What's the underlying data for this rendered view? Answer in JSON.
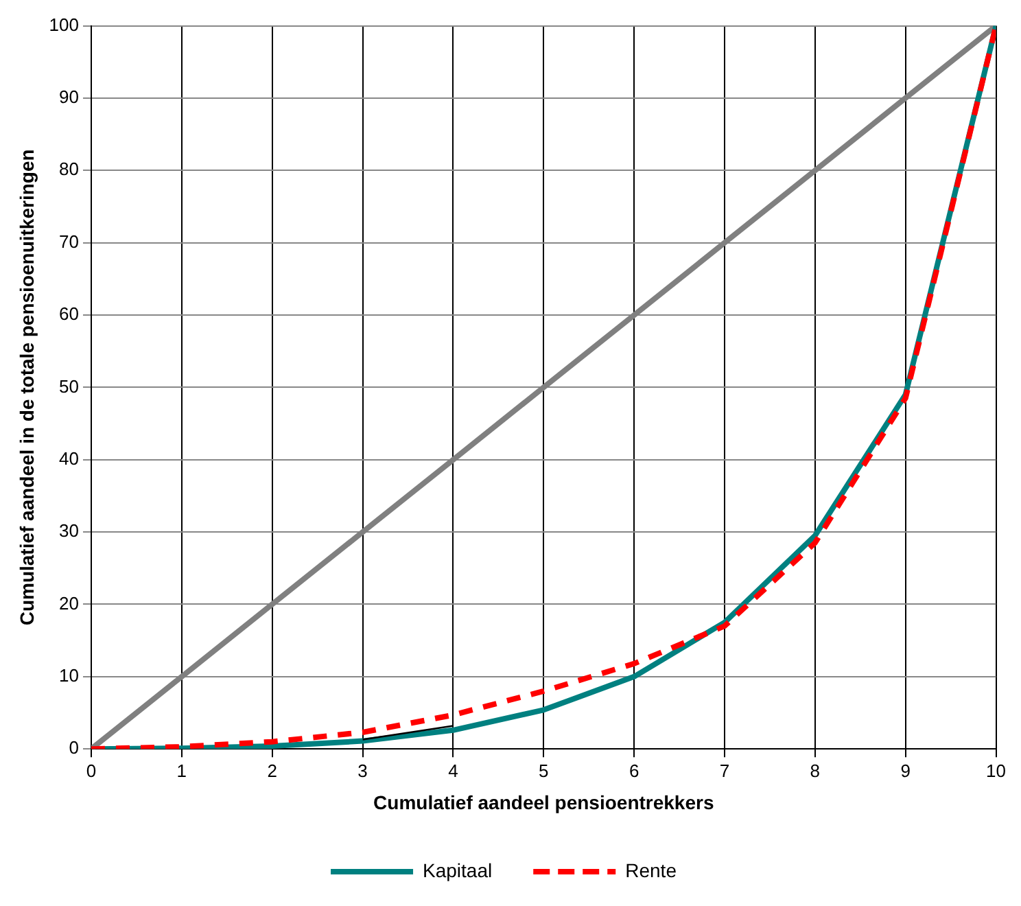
{
  "chart_data": {
    "type": "line",
    "xlabel": "Cumulatief aandeel pensioentrekkers",
    "ylabel": "Cumulatief aandeel in de totale pensioenuitkeringen",
    "x": [
      0,
      1,
      2,
      3,
      4,
      5,
      6,
      7,
      8,
      9,
      10
    ],
    "xlim": [
      0,
      10
    ],
    "xticks": [
      0,
      1,
      2,
      3,
      4,
      5,
      6,
      7,
      8,
      9,
      10
    ],
    "ylim": [
      0,
      100
    ],
    "yticks": [
      0,
      10,
      20,
      30,
      40,
      50,
      60,
      70,
      80,
      90,
      100
    ],
    "grid": true,
    "legend": "bottom",
    "marker": "none",
    "series": [
      {
        "color": "#808080",
        "values": [
          0,
          10,
          20,
          30,
          40,
          50,
          60,
          70,
          80,
          90,
          100
        ],
        "line_style": "solid"
      },
      {
        "name": "Kapitaal",
        "color": "#008080",
        "values": [
          0,
          0.1,
          0.4,
          1.1,
          2.6,
          5.4,
          10,
          17.5,
          29.5,
          49,
          100
        ],
        "line_style": "solid"
      },
      {
        "color": "#000000",
        "values": [
          null,
          null,
          null,
          1.3,
          3.2,
          null,
          null,
          null,
          null,
          null,
          null
        ],
        "line_style": "solid"
      },
      {
        "name": "Rente",
        "color": "#ff0000",
        "values": [
          0,
          0.3,
          1,
          2.3,
          4.7,
          8,
          11.8,
          17,
          28.5,
          48.5,
          100
        ],
        "line_style": "dashed"
      }
    ]
  }
}
